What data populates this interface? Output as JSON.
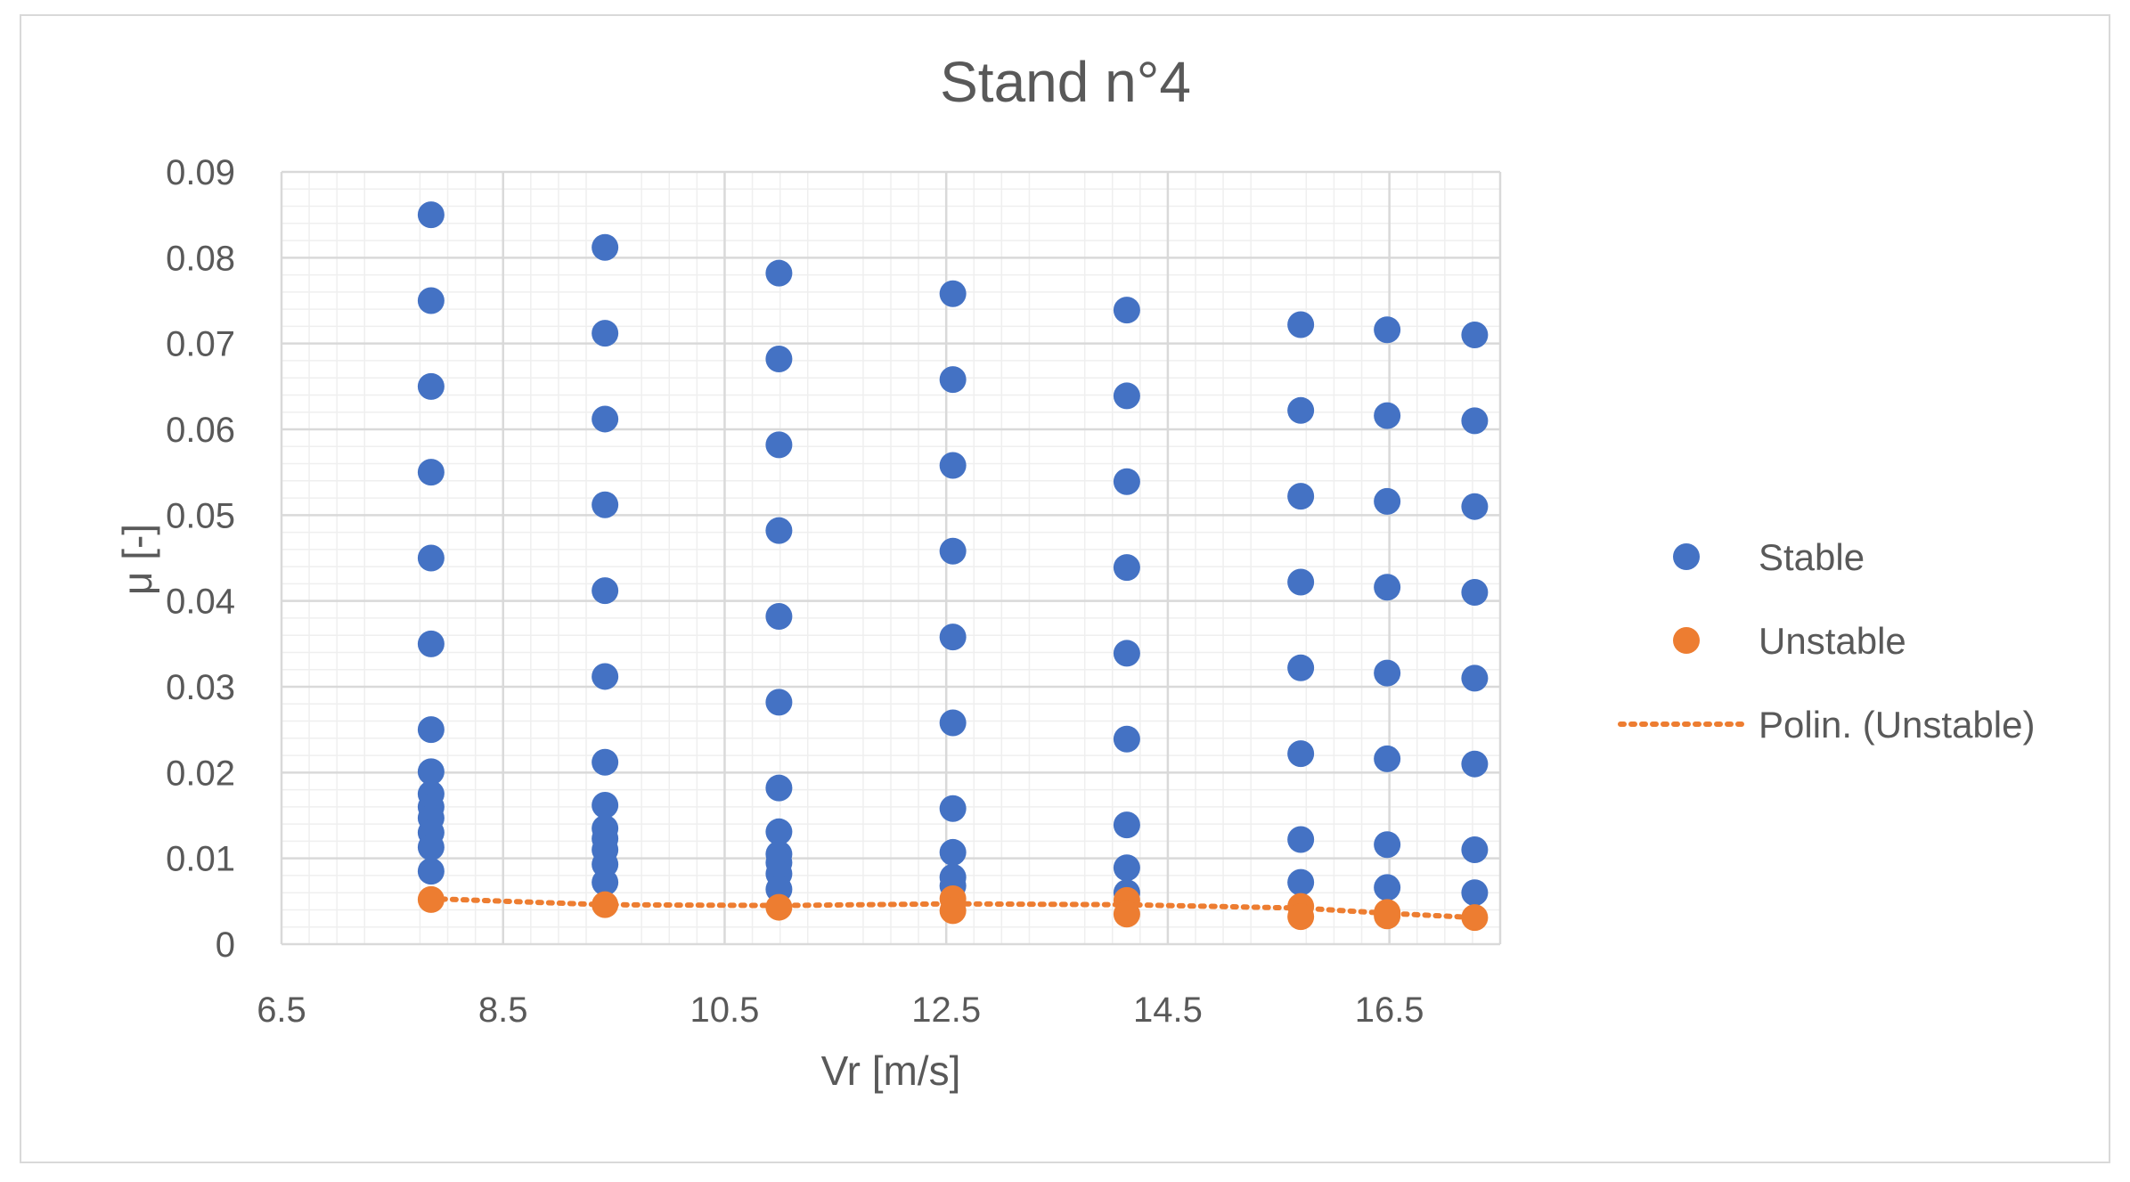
{
  "colors": {
    "stable": "#4472C4",
    "unstable": "#ED7D31",
    "trend": "#ED7D31",
    "major_grid": "#d9d9d9",
    "minor_grid": "#efefef",
    "text": "#595959"
  },
  "chart_data": {
    "type": "scatter",
    "title": "Stand n°4",
    "xlabel": "Vr [m/s]",
    "ylabel": "μ [-]",
    "xlim": [
      6.5,
      17.5
    ],
    "ylim": [
      0,
      0.09
    ],
    "x_ticks": [
      "6.5",
      "8.5",
      "10.5",
      "12.5",
      "14.5",
      "16.5"
    ],
    "x_tick_values": [
      6.5,
      8.5,
      10.5,
      12.5,
      14.5,
      16.5
    ],
    "y_ticks": [
      "0",
      "0.01",
      "0.02",
      "0.03",
      "0.04",
      "0.05",
      "0.06",
      "0.07",
      "0.08",
      "0.09"
    ],
    "y_tick_values": [
      0,
      0.01,
      0.02,
      0.03,
      0.04,
      0.05,
      0.06,
      0.07,
      0.08,
      0.09
    ],
    "grid": true,
    "legend_position": "right",
    "series": [
      {
        "name": "Stable",
        "marker": "circle",
        "points": [
          [
            7.85,
            0.085
          ],
          [
            7.85,
            0.075
          ],
          [
            7.85,
            0.065
          ],
          [
            7.85,
            0.055
          ],
          [
            7.85,
            0.045
          ],
          [
            7.85,
            0.035
          ],
          [
            7.85,
            0.025
          ],
          [
            7.85,
            0.0201
          ],
          [
            7.85,
            0.0175
          ],
          [
            7.85,
            0.016
          ],
          [
            7.85,
            0.0147
          ],
          [
            7.85,
            0.013
          ],
          [
            7.85,
            0.0113
          ],
          [
            7.85,
            0.0085
          ],
          [
            9.42,
            0.0812
          ],
          [
            9.42,
            0.0712
          ],
          [
            9.42,
            0.0612
          ],
          [
            9.42,
            0.0512
          ],
          [
            9.42,
            0.0412
          ],
          [
            9.42,
            0.0312
          ],
          [
            9.42,
            0.0212
          ],
          [
            9.42,
            0.0162
          ],
          [
            9.42,
            0.0135
          ],
          [
            9.42,
            0.0123
          ],
          [
            9.42,
            0.011
          ],
          [
            9.42,
            0.0093
          ],
          [
            9.42,
            0.0072
          ],
          [
            10.99,
            0.0782
          ],
          [
            10.99,
            0.0682
          ],
          [
            10.99,
            0.0582
          ],
          [
            10.99,
            0.0482
          ],
          [
            10.99,
            0.0382
          ],
          [
            10.99,
            0.0282
          ],
          [
            10.99,
            0.0182
          ],
          [
            10.99,
            0.0131
          ],
          [
            10.99,
            0.0105
          ],
          [
            10.99,
            0.0095
          ],
          [
            10.99,
            0.0082
          ],
          [
            10.99,
            0.0064
          ],
          [
            12.56,
            0.0758
          ],
          [
            12.56,
            0.0658
          ],
          [
            12.56,
            0.0558
          ],
          [
            12.56,
            0.0458
          ],
          [
            12.56,
            0.0358
          ],
          [
            12.56,
            0.0258
          ],
          [
            12.56,
            0.0158
          ],
          [
            12.56,
            0.0107
          ],
          [
            12.56,
            0.0078
          ],
          [
            12.56,
            0.0068
          ],
          [
            14.13,
            0.0739
          ],
          [
            14.13,
            0.0639
          ],
          [
            14.13,
            0.0539
          ],
          [
            14.13,
            0.0439
          ],
          [
            14.13,
            0.0339
          ],
          [
            14.13,
            0.0239
          ],
          [
            14.13,
            0.0139
          ],
          [
            14.13,
            0.0089
          ],
          [
            14.13,
            0.006
          ],
          [
            15.7,
            0.0722
          ],
          [
            15.7,
            0.0622
          ],
          [
            15.7,
            0.0522
          ],
          [
            15.7,
            0.0422
          ],
          [
            15.7,
            0.0322
          ],
          [
            15.7,
            0.0222
          ],
          [
            15.7,
            0.0122
          ],
          [
            15.7,
            0.0072
          ],
          [
            16.48,
            0.0716
          ],
          [
            16.48,
            0.0616
          ],
          [
            16.48,
            0.0516
          ],
          [
            16.48,
            0.0416
          ],
          [
            16.48,
            0.0316
          ],
          [
            16.48,
            0.0216
          ],
          [
            16.48,
            0.0116
          ],
          [
            16.48,
            0.0066
          ],
          [
            17.27,
            0.071
          ],
          [
            17.27,
            0.061
          ],
          [
            17.27,
            0.051
          ],
          [
            17.27,
            0.041
          ],
          [
            17.27,
            0.031
          ],
          [
            17.27,
            0.021
          ],
          [
            17.27,
            0.011
          ],
          [
            17.27,
            0.006
          ]
        ]
      },
      {
        "name": "Unstable",
        "marker": "circle",
        "points": [
          [
            7.85,
            0.0052
          ],
          [
            9.42,
            0.0046
          ],
          [
            10.99,
            0.0043
          ],
          [
            12.56,
            0.0053
          ],
          [
            12.56,
            0.0039
          ],
          [
            14.13,
            0.0051
          ],
          [
            14.13,
            0.0035
          ],
          [
            15.7,
            0.0044
          ],
          [
            15.7,
            0.0032
          ],
          [
            16.48,
            0.0037
          ],
          [
            16.48,
            0.0033
          ],
          [
            17.27,
            0.0031
          ]
        ]
      },
      {
        "name": "Polin. (Unstable)",
        "style": "dotted-line",
        "points": [
          [
            7.85,
            0.0053
          ],
          [
            9.42,
            0.0046
          ],
          [
            10.99,
            0.0045
          ],
          [
            12.56,
            0.0047
          ],
          [
            14.13,
            0.0046
          ],
          [
            15.7,
            0.0042
          ],
          [
            16.48,
            0.0036
          ],
          [
            17.27,
            0.0031
          ]
        ]
      }
    ]
  }
}
